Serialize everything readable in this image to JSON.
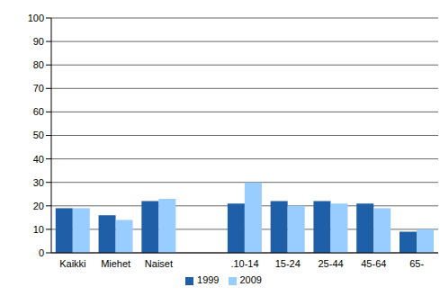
{
  "chart_data": {
    "type": "bar",
    "categories": [
      "Kaikki",
      "Miehet",
      "Naiset",
      null,
      ".10-14",
      "15-24",
      "25-44",
      "45-64",
      "65-"
    ],
    "series": [
      {
        "name": "1999",
        "color": "#1f5fa8",
        "values": [
          19,
          16,
          22,
          null,
          21,
          22,
          22,
          21,
          9
        ]
      },
      {
        "name": "2009",
        "color": "#99ccff",
        "values": [
          19,
          14,
          23,
          null,
          30,
          20,
          21,
          19,
          10
        ]
      }
    ],
    "ylim": [
      0,
      100
    ],
    "yticks": [
      0,
      10,
      20,
      30,
      40,
      50,
      60,
      70,
      80,
      90,
      100
    ],
    "grid": true,
    "legend": "bottom"
  }
}
